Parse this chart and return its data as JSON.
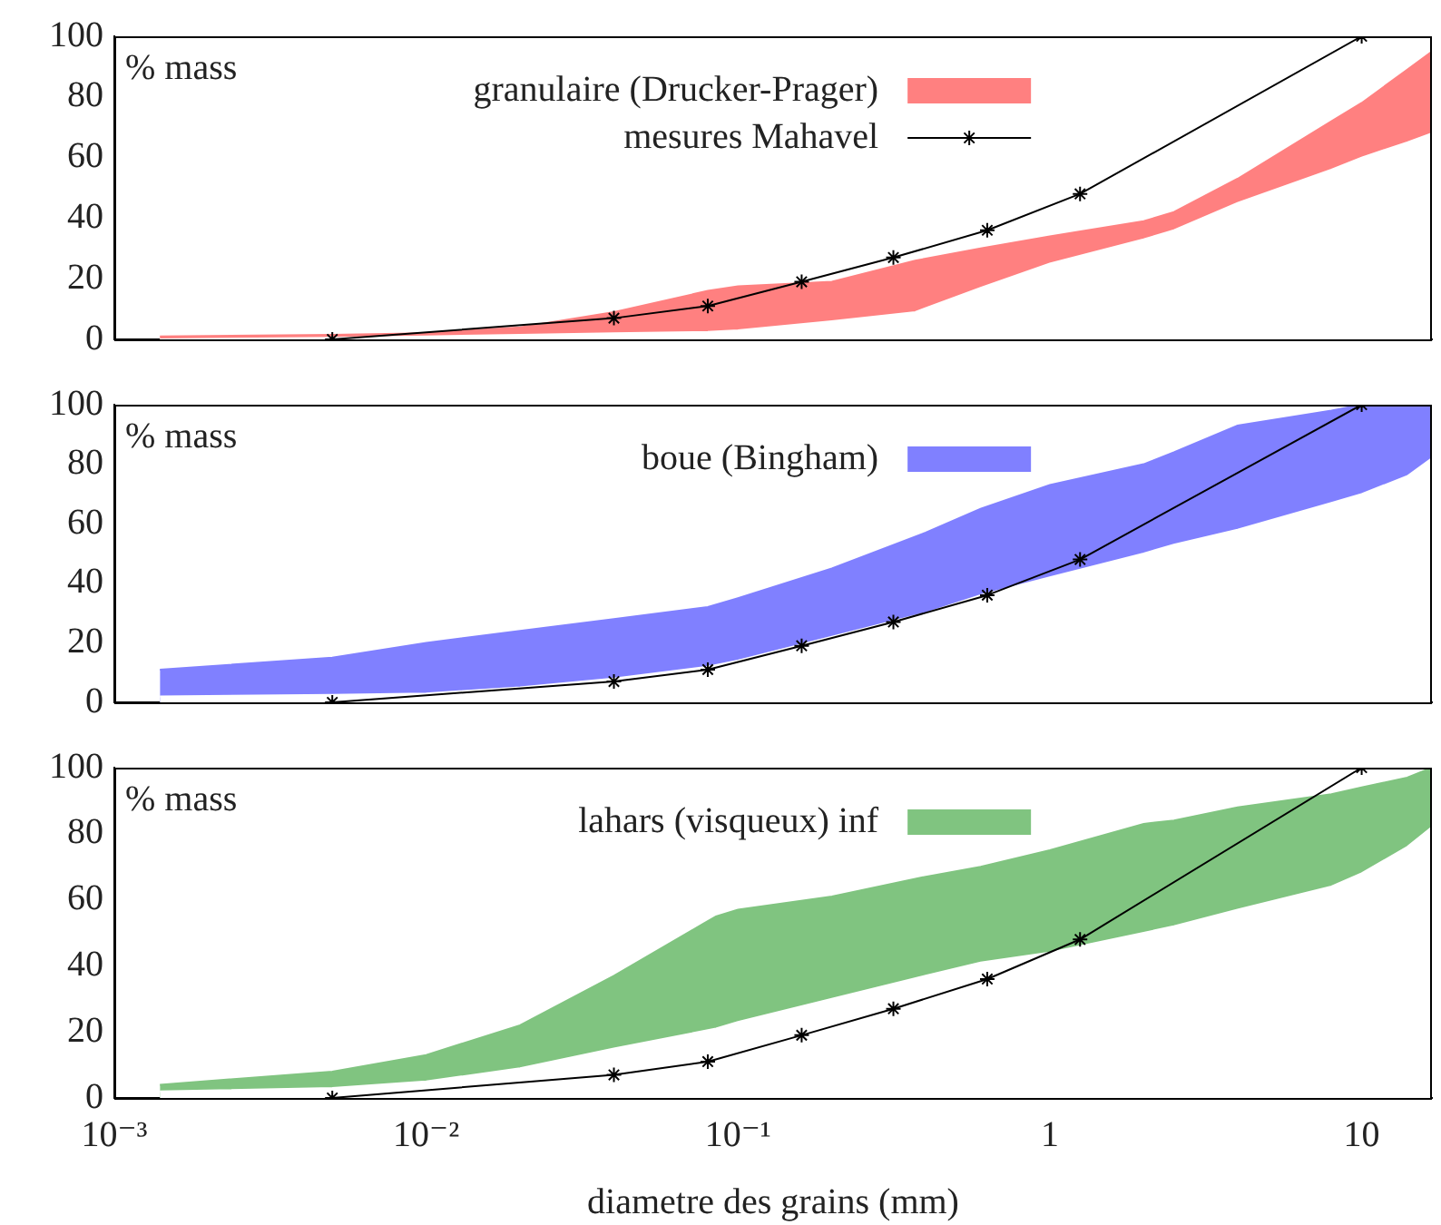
{
  "chart_data": [
    {
      "type": "area",
      "ylabel": "% mass",
      "xlim": [
        0.001,
        16.8
      ],
      "ylim": [
        0,
        100
      ],
      "yticks": [
        0,
        20,
        40,
        60,
        80,
        100
      ],
      "log": "x",
      "grid": false,
      "legend": "top",
      "tick_labels": "y",
      "series": [
        {
          "name": "granulaire (Drucker-Prager)",
          "color": "#ff8080",
          "x": [
            0.0014,
            0.005,
            0.01,
            0.02,
            0.04,
            0.08,
            0.1,
            0.2,
            0.37,
            0.6,
            1,
            2,
            2.5,
            4,
            8,
            10,
            14,
            16.8
          ],
          "values": [
            1,
            1.5,
            2,
            4,
            9,
            16,
            17.5,
            19,
            26,
            30,
            34,
            39,
            42,
            53,
            72,
            78,
            89,
            95
          ]
        },
        {
          "color": "#ffffff",
          "x": [
            0.0014,
            0.005,
            0.01,
            0.02,
            0.04,
            0.08,
            0.1,
            0.2,
            0.37,
            0.6,
            1,
            2,
            2.5,
            4,
            8,
            10,
            14,
            16.8
          ],
          "values": [
            0,
            0.5,
            1,
            1.5,
            2,
            2.5,
            3,
            6,
            9,
            17,
            25,
            33,
            36,
            45,
            56,
            60,
            65,
            68
          ]
        },
        {
          "type": "line",
          "name": "mesures Mahavel",
          "color": "#000000",
          "marker": "cross",
          "x": [
            0.005,
            0.04,
            0.08,
            0.16,
            0.315,
            0.63,
            1.25,
            10
          ],
          "values": [
            0,
            7,
            11,
            19,
            27,
            36,
            48,
            100
          ]
        }
      ]
    },
    {
      "type": "area",
      "ylabel": "% mass",
      "xlim": [
        0.001,
        16.8
      ],
      "ylim": [
        0,
        100
      ],
      "yticks": [
        0,
        20,
        40,
        60,
        80,
        100
      ],
      "log": "x",
      "grid": false,
      "legend": "top",
      "tick_labels": "y",
      "series": [
        {
          "name": "boue (Bingham)",
          "color": "#8080ff",
          "x": [
            0.0014,
            0.005,
            0.01,
            0.02,
            0.04,
            0.08,
            0.1,
            0.2,
            0.4,
            0.6,
            1,
            2,
            2.5,
            4,
            8,
            10,
            14,
            16.8
          ],
          "values": [
            11,
            15,
            20,
            24,
            28,
            32,
            35,
            45,
            57,
            65,
            73,
            80,
            84,
            93,
            98,
            100,
            100,
            100
          ]
        },
        {
          "color": "#ffffff",
          "x": [
            0.0014,
            0.005,
            0.01,
            0.02,
            0.04,
            0.08,
            0.1,
            0.2,
            0.4,
            0.6,
            1,
            2,
            2.5,
            4,
            8,
            10,
            14,
            16.8
          ],
          "values": [
            2,
            2.5,
            3,
            5,
            8,
            12,
            14,
            22,
            30,
            36,
            42,
            50,
            53,
            58,
            67,
            70,
            76,
            82
          ]
        },
        {
          "type": "line",
          "color": "#000000",
          "marker": "cross",
          "x": [
            0.005,
            0.04,
            0.08,
            0.16,
            0.315,
            0.63,
            1.25,
            10
          ],
          "values": [
            0,
            7,
            11,
            19,
            27,
            36,
            48,
            100
          ]
        }
      ]
    },
    {
      "type": "area",
      "ylabel": "% mass",
      "xlabel": "diametre des grains (mm)",
      "xlim": [
        0.001,
        16.8
      ],
      "ylim": [
        0,
        100
      ],
      "yticks": [
        0,
        20,
        40,
        60,
        80,
        100
      ],
      "log": "x",
      "grid": false,
      "legend": "top",
      "xticks": [
        {
          "value": 0.001,
          "label": "10⁻³"
        },
        {
          "value": 0.01,
          "label": "10⁻²"
        },
        {
          "value": 0.1,
          "label": "10⁻¹"
        },
        1,
        10
      ],
      "series": [
        {
          "name": "lahars (visqueux) inf",
          "color": "#80c480",
          "x": [
            0.0014,
            0.005,
            0.01,
            0.02,
            0.04,
            0.085,
            0.1,
            0.2,
            0.4,
            0.6,
            1,
            2,
            2.5,
            4,
            8,
            10,
            14,
            16.8
          ],
          "values": [
            4,
            8,
            13,
            22,
            37,
            55,
            57,
            61,
            67,
            70,
            75,
            83,
            84,
            88,
            92,
            94,
            97,
            100
          ]
        },
        {
          "color": "#ffffff",
          "x": [
            0.0014,
            0.005,
            0.01,
            0.02,
            0.04,
            0.085,
            0.1,
            0.2,
            0.4,
            0.6,
            1,
            2,
            2.5,
            4,
            8,
            10,
            14,
            16.8
          ],
          "values": [
            2,
            3,
            5,
            9,
            15,
            21,
            23,
            30,
            37,
            41,
            44,
            50,
            52,
            57,
            64,
            68,
            76,
            82
          ]
        },
        {
          "type": "line",
          "color": "#000000",
          "marker": "cross",
          "x": [
            0.005,
            0.04,
            0.08,
            0.16,
            0.315,
            0.63,
            1.25,
            10
          ],
          "values": [
            0,
            7,
            11,
            19,
            27,
            36,
            48,
            100
          ]
        }
      ]
    }
  ]
}
